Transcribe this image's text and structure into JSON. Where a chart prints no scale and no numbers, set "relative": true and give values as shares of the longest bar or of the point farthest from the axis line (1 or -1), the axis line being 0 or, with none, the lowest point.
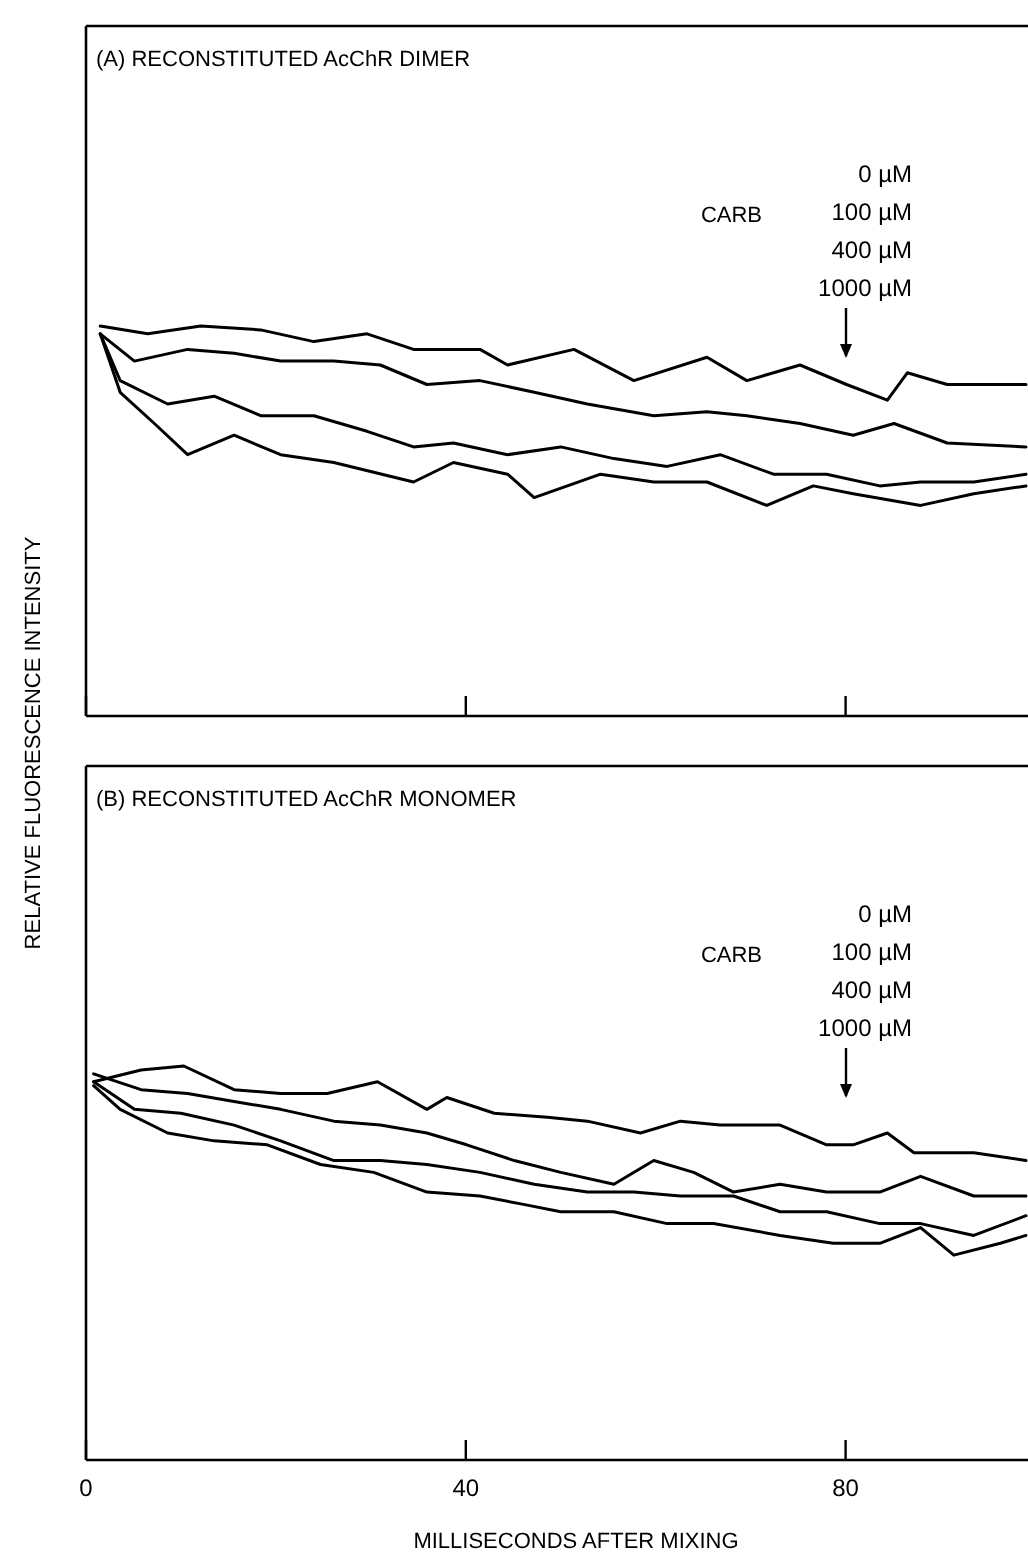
{
  "chart_data": [
    {
      "type": "line",
      "title": "(A) RECONSTITUTED AcChR DIMER",
      "ylabel": "RELATIVE FLUORESCENCE INTENSITY",
      "relative": true,
      "xlim": [
        0,
        99
      ],
      "xticks": [
        0,
        40,
        80
      ],
      "tick_labels": false,
      "legend_title": "CARB",
      "annotations": [
        "0 µM",
        "100 µM",
        "400 µM",
        "1000 µM"
      ],
      "series": [
        {
          "color": "#000000",
          "x": [
            1.5,
            6.5,
            12.1,
            18.4,
            24.0,
            29.6,
            34.5,
            41.5,
            44.4,
            51.4,
            57.7,
            65.4,
            69.6,
            75.2,
            80.1,
            84.4,
            86.5,
            90.7,
            99
          ],
          "values": [
            1.0,
            0.98,
            1.0,
            0.99,
            0.96,
            0.98,
            0.94,
            0.94,
            0.9,
            0.94,
            0.86,
            0.92,
            0.86,
            0.9,
            0.85,
            0.81,
            0.88,
            0.85,
            0.85
          ]
        },
        {
          "color": "#000000",
          "x": [
            1.5,
            5.1,
            10.7,
            15.6,
            20.5,
            26.1,
            31.0,
            35.9,
            41.5,
            47.2,
            52.8,
            59.8,
            65.4,
            69.6,
            75.2,
            80.8,
            85.1,
            90.7,
            99
          ],
          "values": [
            0.98,
            0.91,
            0.94,
            0.93,
            0.91,
            0.91,
            0.9,
            0.85,
            0.86,
            0.83,
            0.8,
            0.77,
            0.78,
            0.77,
            0.75,
            0.72,
            0.75,
            0.7,
            0.69
          ]
        },
        {
          "color": "#000000",
          "x": [
            1.5,
            3.6,
            8.6,
            13.5,
            18.4,
            24.0,
            29.6,
            34.5,
            38.7,
            44.4,
            50.0,
            55.6,
            61.2,
            66.8,
            72.4,
            78.0,
            83.6,
            87.9,
            93.5,
            99
          ],
          "values": [
            0.98,
            0.86,
            0.8,
            0.82,
            0.77,
            0.77,
            0.73,
            0.69,
            0.7,
            0.67,
            0.69,
            0.66,
            0.64,
            0.67,
            0.62,
            0.62,
            0.59,
            0.6,
            0.6,
            0.62
          ]
        },
        {
          "color": "#000000",
          "x": [
            1.5,
            3.6,
            7.2,
            10.7,
            15.6,
            20.5,
            26.1,
            34.5,
            38.7,
            44.4,
            47.2,
            54.2,
            59.8,
            65.4,
            71.7,
            76.6,
            80.8,
            87.9,
            93.5,
            99
          ],
          "values": [
            0.98,
            0.83,
            0.75,
            0.67,
            0.72,
            0.67,
            0.65,
            0.6,
            0.65,
            0.62,
            0.56,
            0.62,
            0.6,
            0.6,
            0.54,
            0.59,
            0.57,
            0.54,
            0.57,
            0.59
          ]
        }
      ]
    },
    {
      "type": "line",
      "title": "(B) RECONSTITUTED AcChR MONOMER",
      "xlabel": "MILLISECONDS AFTER MIXING",
      "relative": true,
      "xlim": [
        0,
        99
      ],
      "xticks": [
        0,
        40,
        80
      ],
      "tick_labels": "x",
      "legend_title": "CARB",
      "annotations": [
        "0 µM",
        "100 µM",
        "400 µM",
        "1000 µM"
      ],
      "series": [
        {
          "color": "#000000",
          "x": [
            0.8,
            5.8,
            10.3,
            15.6,
            20.5,
            25.4,
            30.7,
            35.9,
            38.0,
            43.0,
            48.6,
            52.8,
            58.4,
            62.6,
            66.8,
            73.1,
            78.0,
            80.8,
            84.4,
            87.2,
            93.5,
            99
          ],
          "values": [
            0.96,
            0.99,
            1.0,
            0.94,
            0.93,
            0.93,
            0.96,
            0.89,
            0.92,
            0.88,
            0.87,
            0.86,
            0.83,
            0.86,
            0.85,
            0.85,
            0.8,
            0.8,
            0.83,
            0.78,
            0.78,
            0.76
          ]
        },
        {
          "color": "#000000",
          "x": [
            0.8,
            5.8,
            10.7,
            15.6,
            20.5,
            26.1,
            31.0,
            35.9,
            40.1,
            45.1,
            50.0,
            55.6,
            59.8,
            64.0,
            68.2,
            73.1,
            78.0,
            83.6,
            87.9,
            93.5,
            99
          ],
          "values": [
            0.98,
            0.94,
            0.93,
            0.91,
            0.89,
            0.86,
            0.85,
            0.83,
            0.8,
            0.76,
            0.73,
            0.7,
            0.76,
            0.73,
            0.68,
            0.7,
            0.68,
            0.68,
            0.72,
            0.67,
            0.67
          ]
        },
        {
          "color": "#000000",
          "x": [
            0.8,
            5.1,
            10.0,
            15.6,
            20.5,
            26.1,
            31.0,
            35.9,
            41.5,
            47.2,
            52.8,
            57.7,
            62.6,
            68.2,
            73.1,
            78.0,
            83.6,
            87.9,
            93.5,
            99
          ],
          "values": [
            0.96,
            0.89,
            0.88,
            0.85,
            0.81,
            0.76,
            0.76,
            0.75,
            0.73,
            0.7,
            0.68,
            0.68,
            0.67,
            0.67,
            0.63,
            0.63,
            0.6,
            0.6,
            0.57,
            0.62
          ]
        },
        {
          "color": "#000000",
          "x": [
            0.8,
            3.6,
            8.6,
            13.5,
            19.1,
            24.7,
            30.3,
            35.9,
            41.5,
            45.8,
            50.0,
            55.6,
            61.2,
            66.1,
            73.1,
            78.7,
            83.6,
            87.9,
            91.4,
            96.3,
            99
          ],
          "values": [
            0.95,
            0.89,
            0.83,
            0.81,
            0.8,
            0.75,
            0.73,
            0.68,
            0.67,
            0.65,
            0.63,
            0.63,
            0.6,
            0.6,
            0.57,
            0.55,
            0.55,
            0.59,
            0.52,
            0.55,
            0.57
          ]
        }
      ]
    }
  ]
}
